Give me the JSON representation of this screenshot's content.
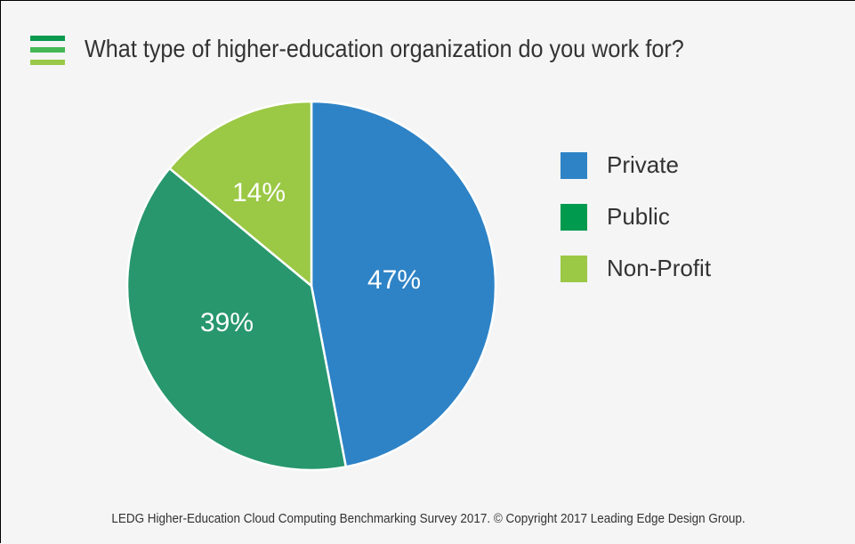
{
  "title": "What type of higher-education organization do you work for?",
  "title_icon": {
    "name": "menu-lines-icon",
    "colors": [
      "#0a9a4e",
      "#45b755",
      "#9ac848"
    ]
  },
  "chart_data": {
    "type": "pie",
    "title": "What type of higher-education organization do you work for?",
    "categories": [
      "Private",
      "Public",
      "Non-Profit"
    ],
    "values": [
      47,
      39,
      14
    ],
    "labels": [
      "47%",
      "39%",
      "14%"
    ],
    "colors": [
      "#2e83c6",
      "#28976e",
      "#9bc845"
    ],
    "legend_colors": [
      "#2e83c6",
      "#009a4e",
      "#9bc845"
    ],
    "start_angle": "12 o'clock, clockwise",
    "legend_position": "right"
  },
  "legend": [
    {
      "label": "Private",
      "color": "#2e83c6"
    },
    {
      "label": "Public",
      "color": "#009a4e"
    },
    {
      "label": "Non-Profit",
      "color": "#9bc845"
    }
  ],
  "footer": "LEDG Higher-Education Cloud Computing Benchmarking Survey 2017.  © Copyright 2017 Leading Edge Design Group."
}
